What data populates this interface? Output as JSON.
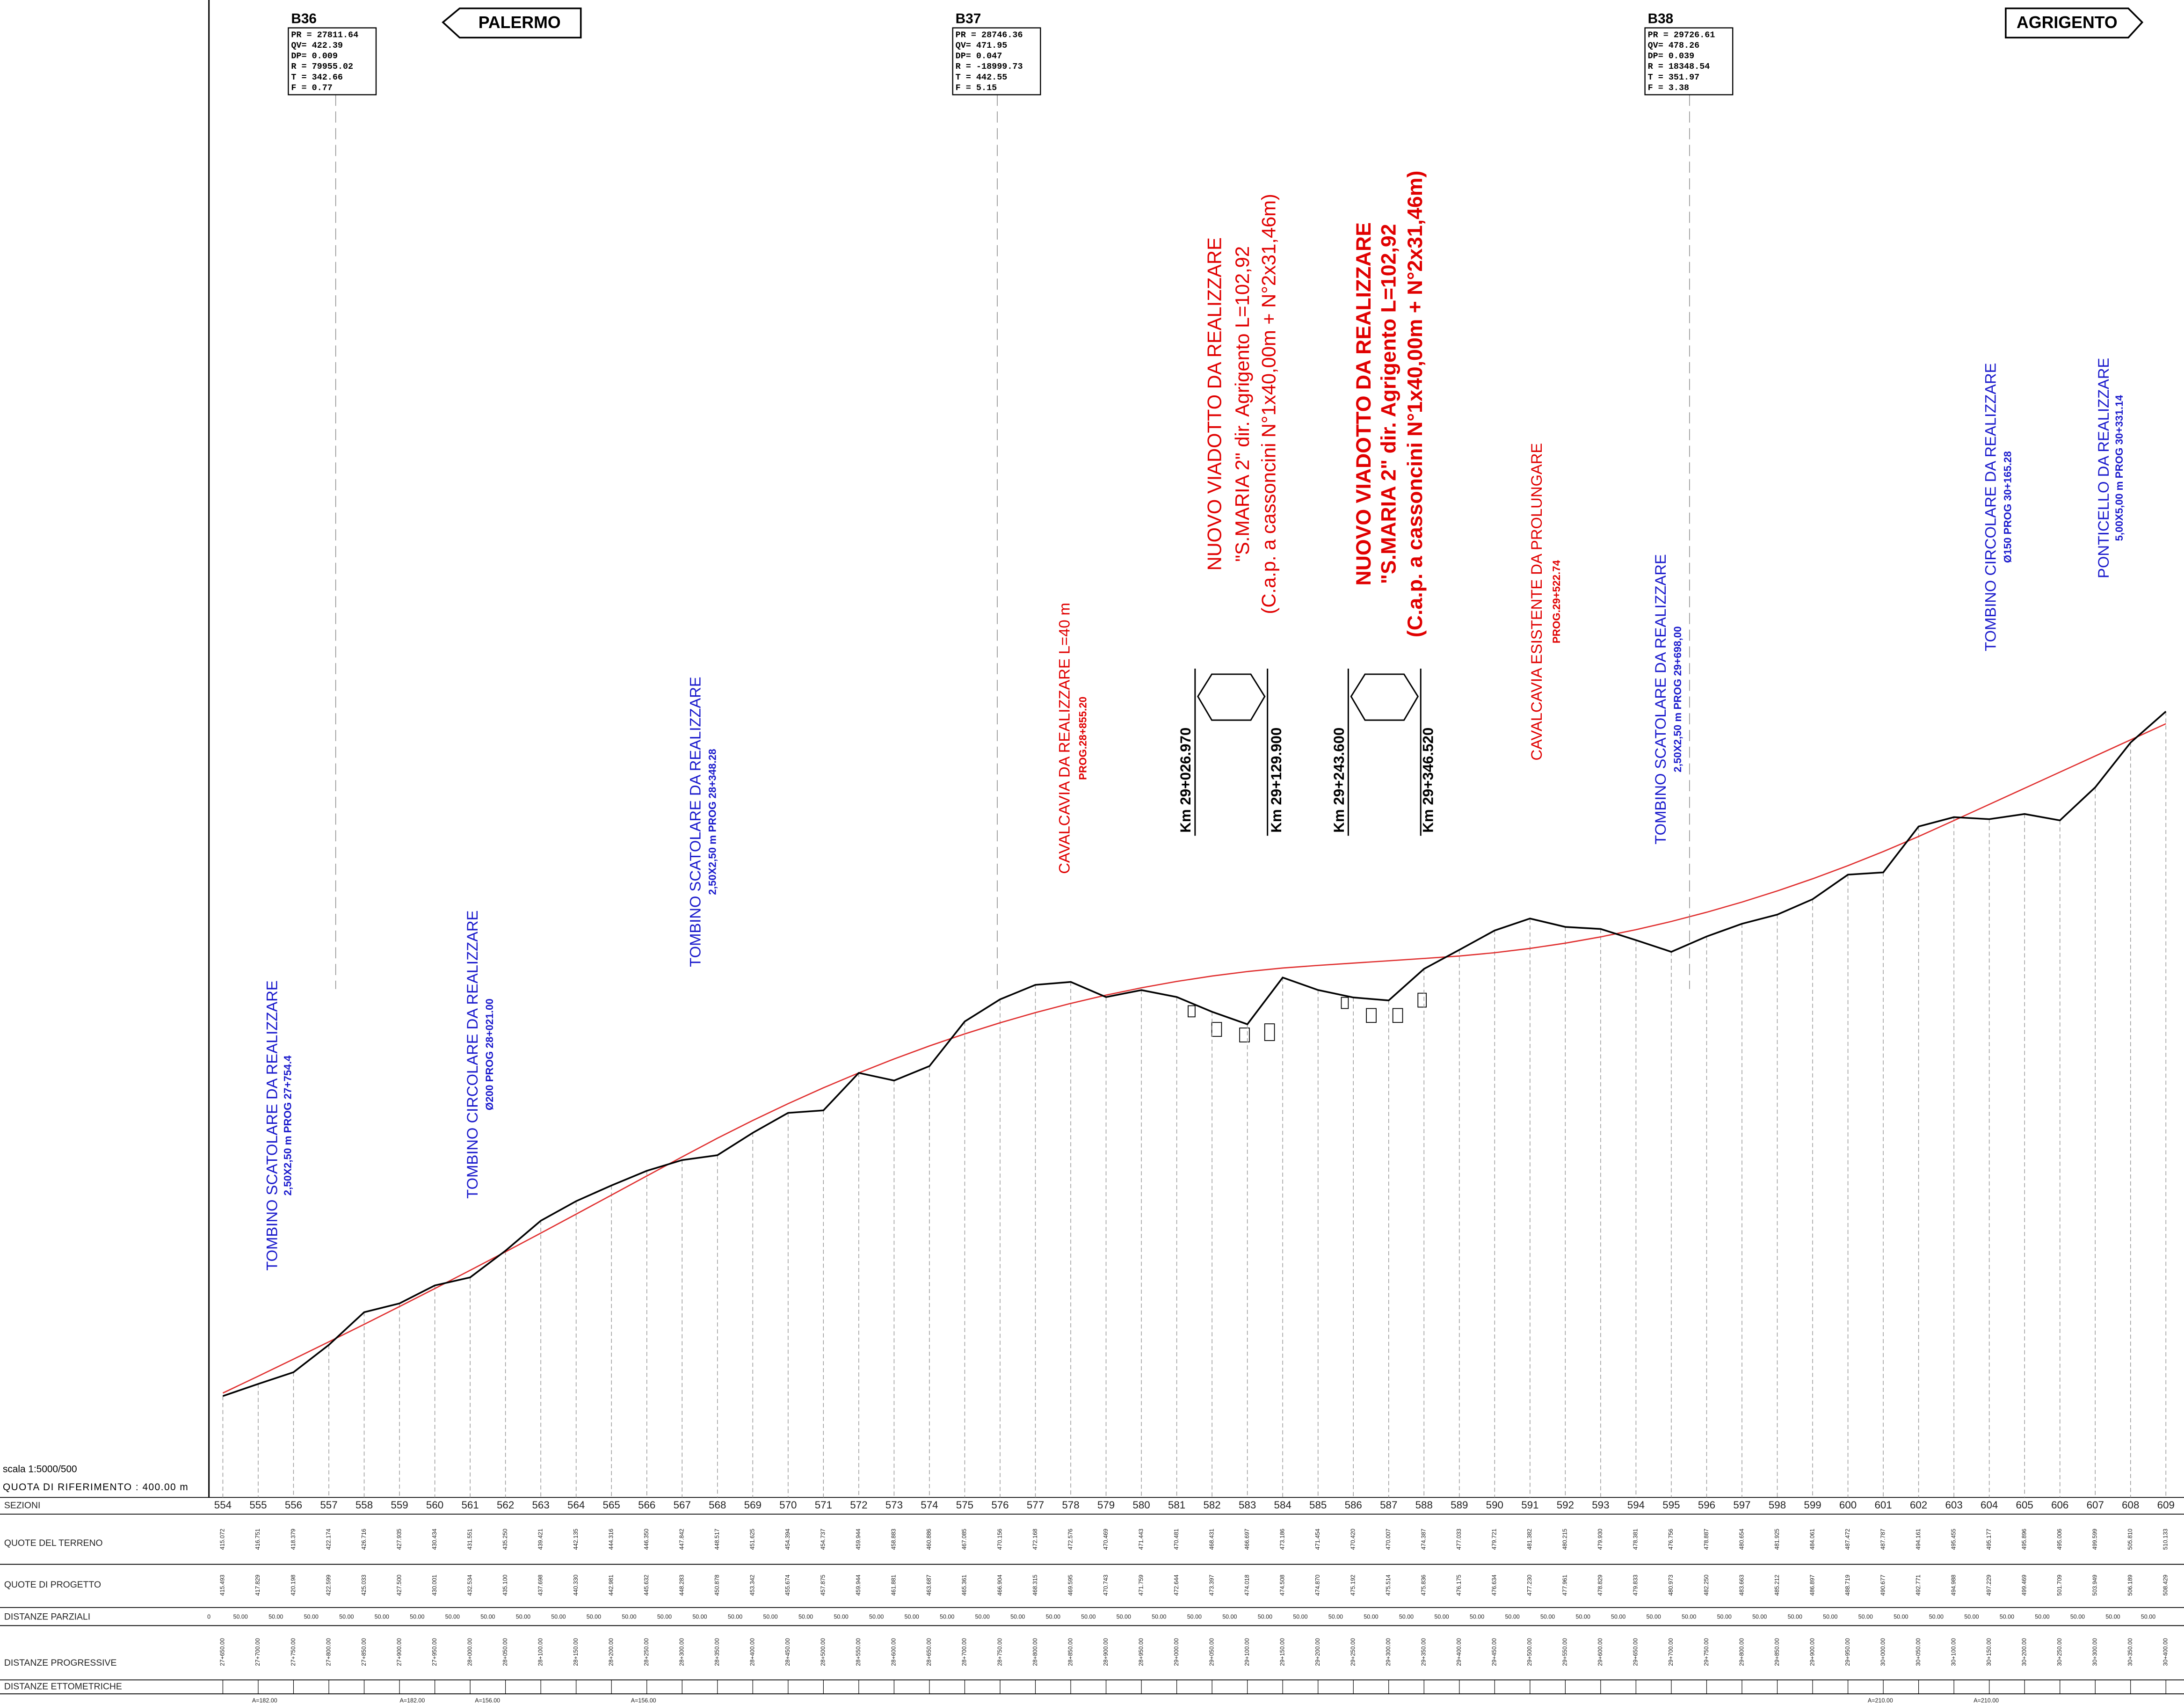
{
  "header": {
    "scale": "scala 1:5000/500",
    "reference": "QUOTA DI RIFERIMENTO : 400.00 m",
    "directions": [
      "PALERMO",
      "AGRIGENTO"
    ]
  },
  "vertices": [
    {
      "name": "B36",
      "params": [
        "PR = 27811.64",
        "QV= 422.39",
        "DP= 0.009",
        "R = 79955.02",
        "T = 342.66",
        "F = 0.77"
      ]
    },
    {
      "name": "B37",
      "params": [
        "PR = 28746.36",
        "QV= 471.95",
        "DP= 0.047",
        "R = -18999.73",
        "T = 442.55",
        "F = 5.15"
      ]
    },
    {
      "name": "B38",
      "params": [
        "PR = 29726.61",
        "QV= 478.26",
        "DP= 0.039",
        "R = 18348.54",
        "T = 351.97",
        "F = 3.38"
      ]
    }
  ],
  "annotations": [
    {
      "title": "TOMBINO SCATOLARE DA REALIZZARE",
      "detail": "2,50X2,50 m  PROG 27+754.4"
    },
    {
      "title": "TOMBINO CIRCOLARE DA REALIZZARE",
      "detail": "Ø200 PROG 28+021.00"
    },
    {
      "title": "TOMBINO SCATOLARE DA REALIZZARE",
      "detail": "2,50X2,50 m PROG 28+348.28"
    },
    {
      "title": "CAVALCAVIA DA REALIZZARE L=40 m",
      "detail": "PROG.28+855.20"
    },
    {
      "title": "CAVALCAVIA ESISTENTE DA PROLUNGARE",
      "detail": "PROG.29+522.74"
    },
    {
      "title": "TOMBINO SCATOLARE DA REALIZZARE",
      "detail": "2,50X2,50 m  PROG 29+698,00"
    },
    {
      "title": "TOMBINO CIRCOLARE DA REALIZZARE",
      "detail": "Ø150 PROG 30+165.28"
    },
    {
      "title": "PONTICELLO DA REALIZZARE",
      "detail": "5,00X5,00 m PROG 30+331.14"
    }
  ],
  "viaducts": [
    {
      "lines": [
        "NUOVO VIADOTTO DA REALIZZARE",
        "\"S.MARIA 2\" dir. Agrigento L=102,92",
        "(C.a.p. a cassoncini N°1x40,00m + N°2x31,46m)"
      ]
    },
    {
      "lines": [
        "NUOVO VIADOTTO DA REALIZZARE",
        "\"S.MARIA 2\" dir. Agrigento L=102,92",
        "(C.a.p. a cassoncini N°1x40,00m + N°2x31,46m)"
      ]
    }
  ],
  "km_markers": [
    "Km 29+026.970",
    "Km 29+129.900",
    "Km 29+243.600",
    "Km 29+346.520"
  ],
  "table": {
    "row_headers": [
      "SEZIONI",
      "QUOTE  DEL  TERRENO",
      "QUOTE  DI  PROGETTO",
      "DISTANZE  PARZIALI",
      "DISTANZE  PROGRESSIVE",
      "DISTANZE  ETTOMETRICHE"
    ],
    "sections": [
      "554",
      "555",
      "556",
      "557",
      "558",
      "559",
      "560",
      "561",
      "562",
      "563",
      "564",
      "565",
      "566",
      "567",
      "568",
      "569",
      "570",
      "571",
      "572",
      "573",
      "574",
      "575",
      "576",
      "577",
      "578",
      "579",
      "580",
      "581",
      "582",
      "583",
      "584",
      "585",
      "586",
      "587",
      "588",
      "589",
      "590",
      "591",
      "592",
      "593",
      "594",
      "595",
      "596",
      "597",
      "598",
      "599",
      "600",
      "601",
      "602",
      "603",
      "604",
      "605",
      "606",
      "607",
      "608",
      "609"
    ],
    "terrain": [
      "415.072",
      "416.751",
      "418.379",
      "422.174",
      "426.716",
      "427.935",
      "430.434",
      "431.551",
      "435.250",
      "439.421",
      "442.135",
      "444.316",
      "446.350",
      "447.842",
      "448.517",
      "451.625",
      "454.394",
      "454.737",
      "459.944",
      "458.883",
      "460.886",
      "467.085",
      "470.156",
      "472.168",
      "472.576",
      "470.469",
      "471.443",
      "470.481",
      "468.431",
      "466.697",
      "473.186",
      "471.454",
      "470.420",
      "470.007",
      "474.387",
      "477.033",
      "479.721",
      "481.382",
      "480.215",
      "479.930",
      "478.381",
      "476.756",
      "478.887",
      "480.654",
      "481.925",
      "484.061",
      "487.472",
      "487.787",
      "494.161",
      "495.455",
      "495.177",
      "495.896",
      "495.006",
      "499.599",
      "505.810",
      "510.133"
    ],
    "project": [
      "415.493",
      "417.829",
      "420.198",
      "422.599",
      "425.033",
      "427.500",
      "430.001",
      "432.534",
      "435.100",
      "437.698",
      "440.330",
      "442.981",
      "445.632",
      "448.283",
      "450.878",
      "453.342",
      "455.674",
      "457.875",
      "459.944",
      "461.881",
      "463.687",
      "465.361",
      "466.904",
      "468.315",
      "469.595",
      "470.743",
      "471.759",
      "472.644",
      "473.397",
      "474.018",
      "474.508",
      "474.870",
      "475.192",
      "475.514",
      "475.836",
      "476.175",
      "476.634",
      "477.230",
      "477.961",
      "478.829",
      "479.833",
      "480.973",
      "482.250",
      "483.663",
      "485.212",
      "486.897",
      "488.719",
      "490.677",
      "492.771",
      "494.988",
      "497.229",
      "499.469",
      "501.709",
      "503.949",
      "506.189",
      "508.429"
    ],
    "partial": [
      "0",
      "50.00",
      "50.00",
      "50.00",
      "50.00",
      "50.00",
      "50.00",
      "50.00",
      "50.00",
      "50.00",
      "50.00",
      "50.00",
      "50.00",
      "50.00",
      "50.00",
      "50.00",
      "50.00",
      "50.00",
      "50.00",
      "50.00",
      "50.00",
      "50.00",
      "50.00",
      "50.00",
      "50.00",
      "50.00",
      "50.00",
      "50.00",
      "50.00",
      "50.00",
      "50.00",
      "50.00",
      "50.00",
      "50.00",
      "50.00",
      "50.00",
      "50.00",
      "50.00",
      "50.00",
      "50.00",
      "50.00",
      "50.00",
      "50.00",
      "50.00",
      "50.00",
      "50.00",
      "50.00",
      "50.00",
      "50.00",
      "50.00",
      "50.00",
      "50.00",
      "50.00",
      "50.00",
      "50.00",
      "50.00"
    ],
    "progressive": [
      "27+650.00",
      "27+700.00",
      "27+750.00",
      "27+800.00",
      "27+850.00",
      "27+900.00",
      "27+950.00",
      "28+000.00",
      "28+050.00",
      "28+100.00",
      "28+150.00",
      "28+200.00",
      "28+250.00",
      "28+300.00",
      "28+350.00",
      "28+400.00",
      "28+450.00",
      "28+500.00",
      "28+550.00",
      "28+600.00",
      "28+650.00",
      "28+700.00",
      "28+750.00",
      "28+800.00",
      "28+850.00",
      "28+900.00",
      "28+950.00",
      "29+000.00",
      "29+050.00",
      "29+100.00",
      "29+150.00",
      "29+200.00",
      "29+250.00",
      "29+300.00",
      "29+350.00",
      "29+400.00",
      "29+450.00",
      "29+500.00",
      "29+550.00",
      "29+600.00",
      "29+650.00",
      "29+700.00",
      "29+750.00",
      "29+800.00",
      "29+850.00",
      "29+900.00",
      "29+950.00",
      "30+000.00",
      "30+050.00",
      "30+100.00",
      "30+150.00",
      "30+200.00",
      "30+250.00",
      "30+300.00",
      "30+350.00",
      "30+400.00"
    ],
    "hectometric": [
      "A=182.00",
      "A=182.00",
      "A=156.00",
      "A=156.00",
      "A=210.00",
      "A=210.00"
    ]
  }
}
